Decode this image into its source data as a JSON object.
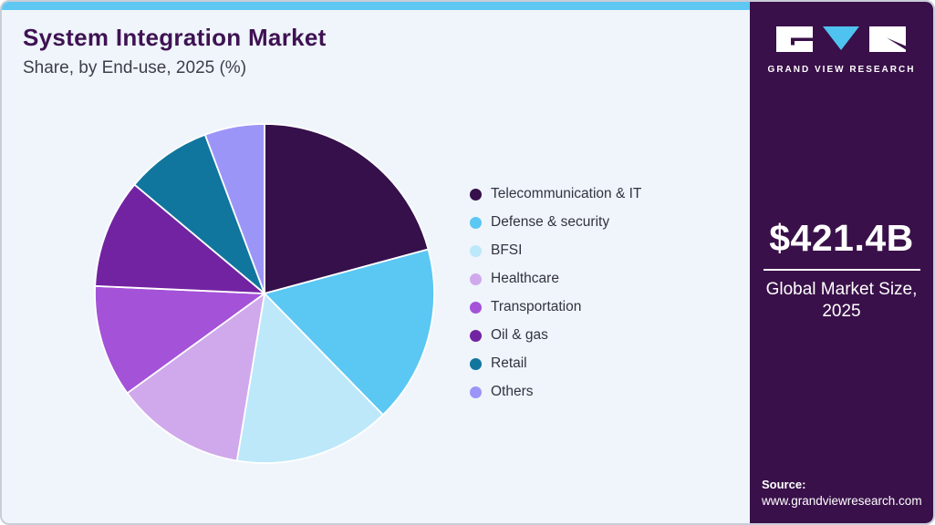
{
  "header": {
    "title": "System Integration Market",
    "subtitle": "Share, by End-use, 2025 (%)"
  },
  "chart_data": {
    "type": "pie",
    "title": "System Integration Market Share, by End-use, 2025 (%)",
    "categories": [
      "Telecommunication & IT",
      "Defense & security",
      "BFSI",
      "Healthcare",
      "Transportation",
      "Oil & gas",
      "Retail",
      "Others"
    ],
    "values": [
      20.8,
      16.9,
      14.9,
      12.4,
      10.7,
      10.4,
      8.2,
      5.7
    ],
    "unit": "%",
    "colors": [
      "#35104B",
      "#5BC7F3",
      "#BCE8FA",
      "#D0A9EC",
      "#A452D8",
      "#7223A2",
      "#10769E",
      "#9C95F8"
    ],
    "legend_position": "right",
    "start_angle_deg": 0
  },
  "sidebar": {
    "brand": {
      "name": "GRAND VIEW RESEARCH",
      "logo_letters": [
        "G",
        "V",
        "R"
      ]
    },
    "market_size": {
      "value": "$421.4B",
      "label_line1": "Global Market Size,",
      "label_line2": "2025"
    },
    "source": {
      "label": "Source:",
      "url": "www.grandviewresearch.com"
    }
  },
  "colors": {
    "accent_bar": "#5FC8F2",
    "sidebar_background": "#391049",
    "title_text": "#3F1253",
    "page_background": "#EFF5FB",
    "logo_triangle": "#4FC3F0"
  }
}
